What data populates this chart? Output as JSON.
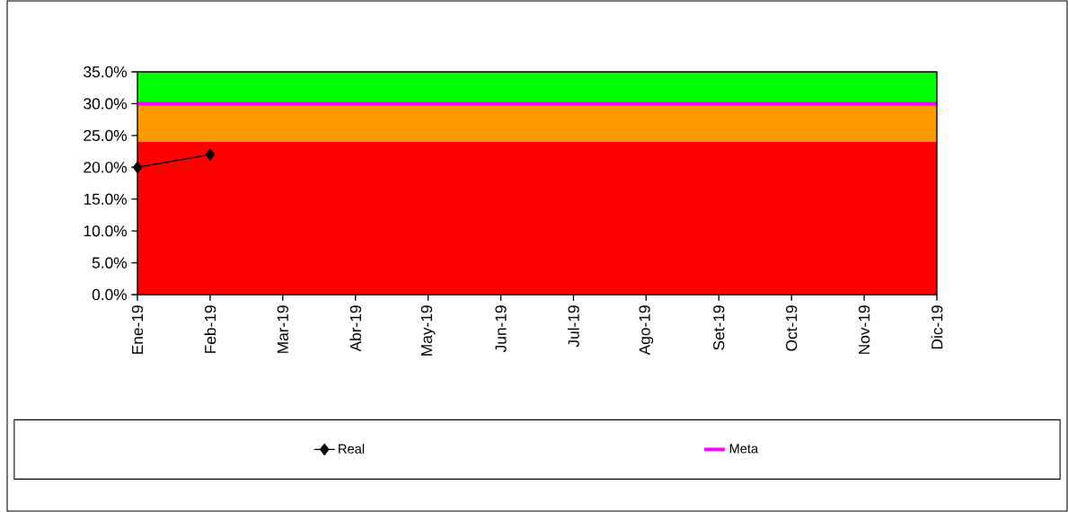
{
  "chart_data": {
    "type": "line",
    "categories": [
      "Ene-19",
      "Feb-19",
      "Mar-19",
      "Abr-19",
      "May-19",
      "Jun-19",
      "Jul-19",
      "Ago-19",
      "Set-19",
      "Oct-19",
      "Nov-19",
      "Dic-19"
    ],
    "series": [
      {
        "name": "Real",
        "color": "#000000",
        "marker": "diamond",
        "values": [
          20,
          22,
          null,
          null,
          null,
          null,
          null,
          null,
          null,
          null,
          null,
          null
        ]
      },
      {
        "name": "Meta",
        "color": "#ff00ff",
        "marker": "none",
        "values": [
          30,
          30,
          30,
          30,
          30,
          30,
          30,
          30,
          30,
          30,
          30,
          30
        ]
      }
    ],
    "bands": [
      {
        "axis": "y",
        "from": 0,
        "to": 24,
        "color": "#ff0000"
      },
      {
        "axis": "y",
        "from": 24,
        "to": 30,
        "color": "#ff9900"
      },
      {
        "axis": "y",
        "from": 30,
        "to": 35,
        "color": "#00ff00"
      }
    ],
    "ylim": [
      0,
      35
    ],
    "yticks": [
      {
        "value": 0,
        "label": "0.0%"
      },
      {
        "value": 5,
        "label": "5.0%"
      },
      {
        "value": 10,
        "label": "10.0%"
      },
      {
        "value": 15,
        "label": "15.0%"
      },
      {
        "value": 20,
        "label": "20.0%"
      },
      {
        "value": 25,
        "label": "25.0%"
      },
      {
        "value": 30,
        "label": "30.0%"
      },
      {
        "value": 35,
        "label": "35.0%"
      }
    ],
    "grid": false,
    "legend": "bottom",
    "line_style": "solid"
  }
}
